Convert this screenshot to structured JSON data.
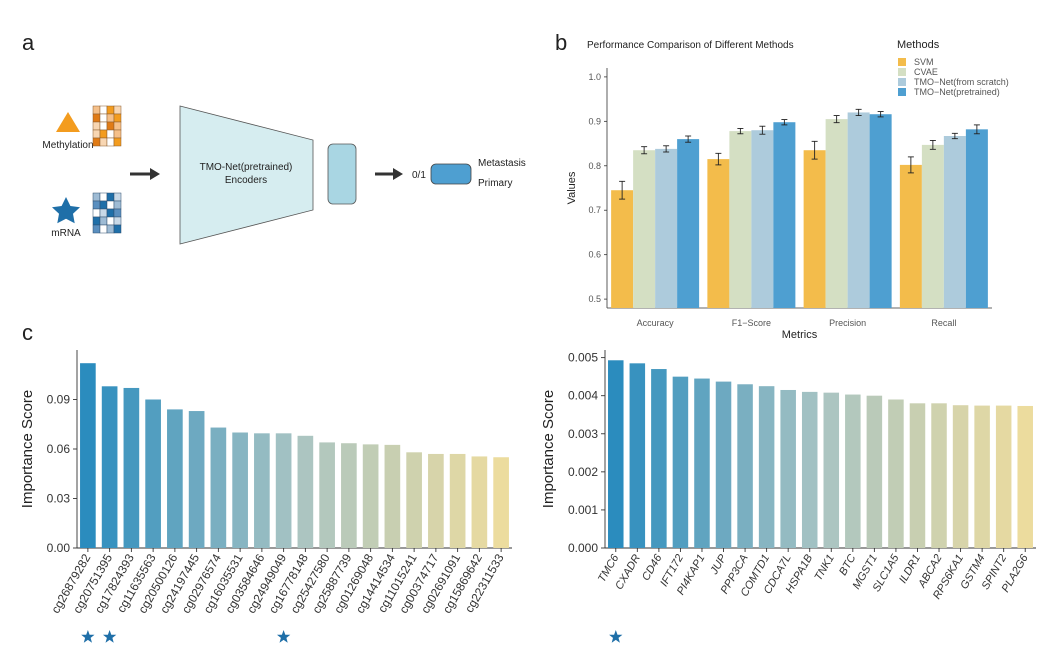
{
  "panels": {
    "a": "a",
    "b": "b",
    "c": "c"
  },
  "schematic": {
    "methylation_label": "Methylation",
    "mrna_label": "mRNA",
    "encoder_label_line1": "TMO-Net(pretrained)",
    "encoder_label_line2": "Encoders",
    "output_value": "0/1",
    "output_class1": "Metastasis",
    "output_class2": "Primary"
  },
  "colors": {
    "svm": "#f3bc4b",
    "cvae": "#d4dfc3",
    "tmo_scratch": "#adcbdc",
    "tmo_pretrained": "#4e9fd1",
    "methylation": "#f39c1f",
    "mrna": "#1f6fa8",
    "encoder_fill": "#d6edf0",
    "star": "#1f6fa8"
  },
  "chart_data": [
    {
      "type": "bar",
      "title": "Performance Comparison of Different Methods",
      "xlabel": "Metrics",
      "ylabel": "Values",
      "ylim": [
        0.48,
        1.02
      ],
      "yticks": [
        "0.5",
        "0.6",
        "0.7",
        "0.8",
        "0.9",
        "1.0"
      ],
      "legend_title": "Methods",
      "legend_position": "top-right",
      "categories": [
        "Accuracy",
        "F1−Score",
        "Precision",
        "Recall"
      ],
      "series": [
        {
          "name": "SVM",
          "values": [
            0.745,
            0.815,
            0.835,
            0.802
          ],
          "errors": [
            0.02,
            0.013,
            0.02,
            0.018
          ]
        },
        {
          "name": "CVAE",
          "values": [
            0.835,
            0.878,
            0.905,
            0.847
          ],
          "errors": [
            0.008,
            0.006,
            0.008,
            0.01
          ]
        },
        {
          "name": "TMO−Net(from scratch)",
          "values": [
            0.838,
            0.88,
            0.92,
            0.867
          ],
          "errors": [
            0.007,
            0.009,
            0.007,
            0.006
          ]
        },
        {
          "name": "TMO−Net(pretrained)",
          "values": [
            0.86,
            0.898,
            0.916,
            0.882
          ],
          "errors": [
            0.007,
            0.006,
            0.006,
            0.01
          ]
        }
      ]
    },
    {
      "type": "bar",
      "ylabel": "Importance Score",
      "ylim": [
        0,
        0.12
      ],
      "yticks": [
        "0.00",
        "0.03",
        "0.06",
        "0.09"
      ],
      "categories": [
        "cg26879282",
        "cg20751395",
        "cg17824393",
        "cg11635563",
        "cg20500126",
        "cg24197445",
        "cg02976574",
        "cg16035531",
        "cg03584646",
        "cg24949049",
        "cg16778148",
        "cg25427580",
        "cg25887739",
        "cg01269048",
        "cg14414534",
        "cg11015241",
        "cg00374717",
        "cg02691091",
        "cg15869642",
        "cg22311533"
      ],
      "values": [
        0.112,
        0.098,
        0.097,
        0.09,
        0.084,
        0.083,
        0.073,
        0.07,
        0.0695,
        0.0695,
        0.068,
        0.064,
        0.0635,
        0.0628,
        0.0625,
        0.058,
        0.057,
        0.057,
        0.0555,
        0.055
      ],
      "starred": [
        "cg26879282",
        "cg20751395",
        "cg24949049"
      ]
    },
    {
      "type": "bar",
      "ylabel": "Importance Score",
      "ylim": [
        0,
        0.0052
      ],
      "yticks": [
        "0.000",
        "0.001",
        "0.002",
        "0.003",
        "0.004",
        "0.005"
      ],
      "categories": [
        "TMC6",
        "CXADR",
        "CD46",
        "IFT172",
        "PI4KAP1",
        "JUP",
        "PPP3CA",
        "COMTD1",
        "CDCA7L",
        "HSPA1B",
        "TNK1",
        "BTC",
        "MGST1",
        "SLC1A5",
        "ILDR1",
        "ABCA2",
        "RPS6KA1",
        "GSTM4",
        "SPINT2",
        "PLA2G6"
      ],
      "values": [
        0.00493,
        0.00485,
        0.0047,
        0.0045,
        0.00445,
        0.00437,
        0.0043,
        0.00425,
        0.00415,
        0.0041,
        0.00408,
        0.00403,
        0.004,
        0.0039,
        0.0038,
        0.0038,
        0.00375,
        0.00374,
        0.00374,
        0.00373
      ],
      "starred": [
        "TMC6"
      ]
    }
  ]
}
